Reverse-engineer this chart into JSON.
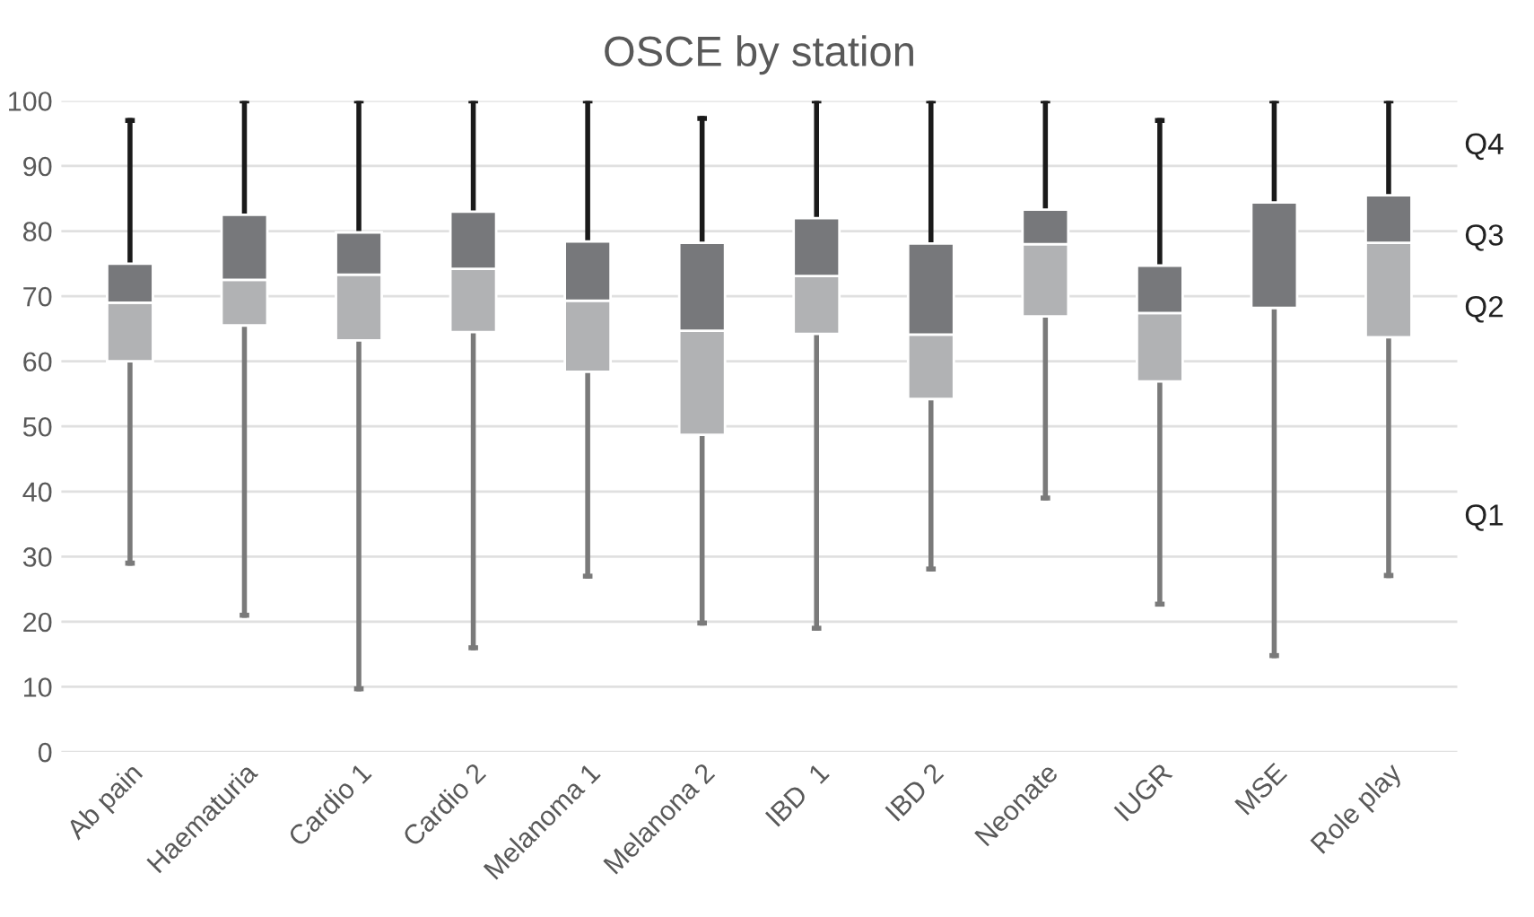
{
  "chart_data": {
    "type": "box",
    "title": "OSCE by station",
    "categories": [
      "Ab pain",
      "Haematuria",
      "Cardio 1",
      "Cardio 2",
      "Melanoma 1",
      "Melanona 2",
      "IBD  1",
      "IBD 2",
      "Neonate",
      "IUGR",
      "MSE",
      "Role play"
    ],
    "boxes": [
      {
        "low": 29,
        "q1": 60,
        "median": 69,
        "q3": 75,
        "high": 97
      },
      {
        "low": 21,
        "q1": 65.5,
        "median": 72.5,
        "q3": 82.5,
        "high": 100
      },
      {
        "low": 9.7,
        "q1": 63.2,
        "median": 73.3,
        "q3": 79.8,
        "high": 100
      },
      {
        "low": 16,
        "q1": 64.5,
        "median": 74.2,
        "q3": 83,
        "high": 100
      },
      {
        "low": 27,
        "q1": 58.4,
        "median": 69.3,
        "q3": 78.4,
        "high": 100
      },
      {
        "low": 19.8,
        "q1": 48.7,
        "median": 64.7,
        "q3": 78.2,
        "high": 97.3
      },
      {
        "low": 19,
        "q1": 64.2,
        "median": 73.1,
        "q3": 82,
        "high": 100
      },
      {
        "low": 28.1,
        "q1": 54.2,
        "median": 64.1,
        "q3": 78.1,
        "high": 100
      },
      {
        "low": 39,
        "q1": 66.9,
        "median": 78,
        "q3": 83.3,
        "high": 100
      },
      {
        "low": 22.7,
        "q1": 56.9,
        "median": 67.4,
        "q3": 74.7,
        "high": 97
      },
      {
        "low": 14.8,
        "q1": 68.2,
        "median": 68.2,
        "q3": 84.4,
        "high": 100
      },
      {
        "low": 27.1,
        "q1": 63.7,
        "median": 78.2,
        "q3": 85.5,
        "high": 100
      }
    ],
    "annotations": [
      "Q4",
      "Q3",
      "Q2",
      "Q1"
    ],
    "ylim": [
      0,
      100
    ],
    "yticks": [
      0,
      10,
      20,
      30,
      40,
      50,
      60,
      70,
      80,
      90,
      100
    ],
    "grid": "y"
  }
}
